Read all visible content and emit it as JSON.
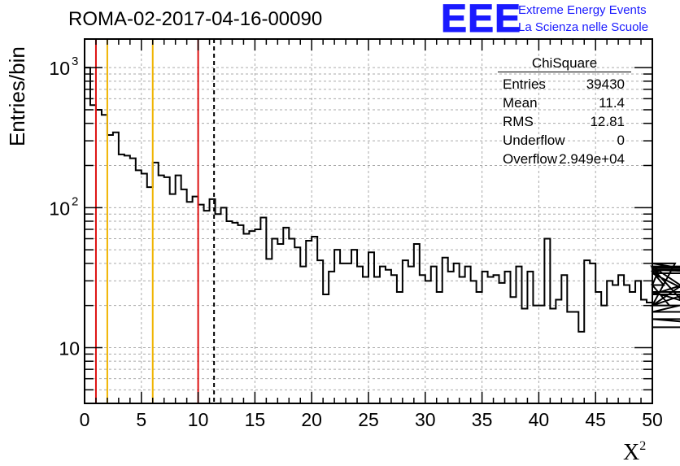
{
  "header": {
    "title": "ROMA-02-2017-04-16-00090"
  },
  "logo": {
    "mark": "EEE",
    "line1": "Extreme Energy Events",
    "line2": "La Scienza nelle Scuole",
    "color": "#1a1aff"
  },
  "stats_box": {
    "title": "ChiSquare",
    "rows": [
      {
        "key": "Entries",
        "value": "39430"
      },
      {
        "key": "Mean",
        "value": "11.4"
      },
      {
        "key": "RMS",
        "value": "12.81"
      },
      {
        "key": "Underflow",
        "value": "0"
      },
      {
        "key": "Overflow",
        "value": "2.949e+04"
      }
    ]
  },
  "chart_data": {
    "type": "histogram",
    "title": "ROMA-02-2017-04-16-00090",
    "xlabel": "X",
    "xlabel_superscript": "2",
    "ylabel": "Entries/bin",
    "xlim": [
      0,
      50
    ],
    "ylim": [
      4,
      1600
    ],
    "y_scale": "log",
    "grid": true,
    "bin_width": 0.5,
    "x_ticks": [
      "0",
      "5",
      "10",
      "15",
      "20",
      "25",
      "30",
      "35",
      "40",
      "45",
      "50"
    ],
    "y_ticks": [
      {
        "value": 10,
        "label": "10"
      },
      {
        "value": 100,
        "label": "10",
        "sup": "2"
      },
      {
        "value": 1000,
        "label": "10",
        "sup": "3"
      }
    ],
    "values": [
      1000,
      540,
      500,
      460,
      330,
      345,
      240,
      235,
      225,
      185,
      175,
      140,
      210,
      170,
      165,
      125,
      170,
      135,
      110,
      120,
      105,
      95,
      115,
      90,
      100,
      80,
      78,
      75,
      65,
      68,
      70,
      85,
      43,
      60,
      55,
      72,
      60,
      52,
      38,
      58,
      62,
      42,
      24,
      35,
      50,
      40,
      40,
      50,
      38,
      32,
      48,
      32,
      38,
      36,
      33,
      25,
      42,
      38,
      55,
      33,
      30,
      38,
      25,
      44,
      35,
      40,
      32,
      38,
      30,
      25,
      35,
      32,
      33,
      29,
      35,
      23,
      38,
      19,
      35,
      20,
      20,
      60,
      19,
      22,
      33,
      18,
      18,
      13,
      42,
      40,
      25,
      20,
      30,
      28,
      33,
      28,
      25,
      30,
      22,
      21,
      28,
      35,
      28,
      20,
      40,
      37,
      20,
      25,
      20,
      20,
      38,
      38,
      18,
      24,
      36,
      34,
      16,
      14
    ],
    "vertical_lines": [
      {
        "x": 1,
        "color": "#dd1111",
        "style": "solid"
      },
      {
        "x": 2,
        "color": "#f0b400",
        "style": "solid"
      },
      {
        "x": 6,
        "color": "#f0b400",
        "style": "solid"
      },
      {
        "x": 10,
        "color": "#dd1111",
        "style": "solid"
      },
      {
        "x": 11.4,
        "color": "#000000",
        "style": "dashed"
      }
    ]
  }
}
